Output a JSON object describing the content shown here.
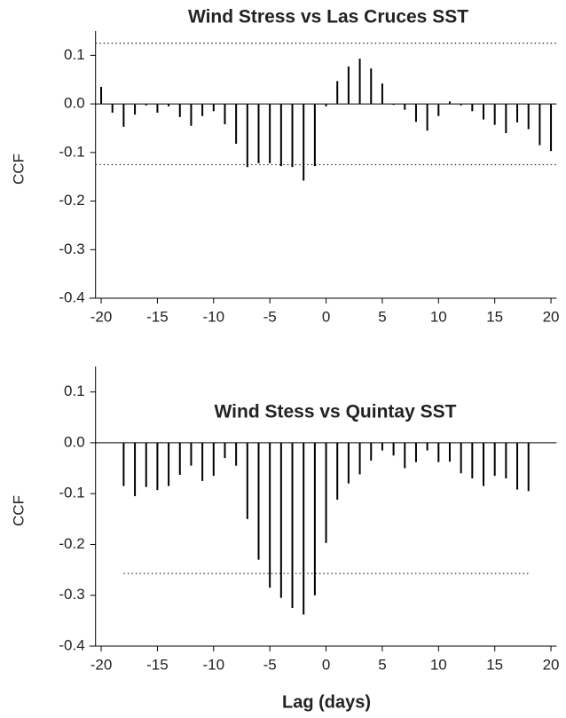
{
  "chart_data": [
    {
      "type": "bar",
      "title": "Wind Stress  vs  Las Cruces SST",
      "ylabel": "CCF",
      "x": [
        -20,
        -19,
        -18,
        -17,
        -16,
        -15,
        -14,
        -13,
        -12,
        -11,
        -10,
        -9,
        -8,
        -7,
        -6,
        -5,
        -4,
        -3,
        -2,
        -1,
        0,
        1,
        2,
        3,
        4,
        5,
        6,
        7,
        8,
        9,
        10,
        11,
        12,
        13,
        14,
        15,
        16,
        17,
        18,
        19,
        20
      ],
      "values": [
        0.035,
        -0.018,
        -0.047,
        -0.022,
        -0.003,
        -0.018,
        -0.005,
        -0.027,
        -0.045,
        -0.025,
        -0.015,
        -0.042,
        -0.082,
        -0.13,
        -0.122,
        -0.122,
        -0.128,
        -0.13,
        -0.158,
        -0.128,
        -0.005,
        0.047,
        0.077,
        0.093,
        0.073,
        0.042,
        -0.002,
        -0.012,
        -0.037,
        -0.055,
        -0.025,
        0.005,
        -0.003,
        -0.015,
        -0.032,
        -0.043,
        -0.06,
        -0.038,
        -0.052,
        -0.085,
        -0.097
      ],
      "color": "#000000",
      "reference_lines": [
        0.125,
        -0.125
      ],
      "xlim": [
        -20.5,
        20.5
      ],
      "xticks": [
        -20,
        -15,
        -10,
        -5,
        0,
        5,
        10,
        15,
        20
      ],
      "ylim": [
        -0.4,
        0.15
      ],
      "yticks": [
        -0.4,
        -0.3,
        -0.2,
        -0.1,
        {
          "value": 0,
          "label": "0.0"
        },
        0.1
      ]
    },
    {
      "type": "bar",
      "title": "Wind Stess  vs  Quintay SST",
      "ylabel": "CCF",
      "xlabel": "Lag (days)",
      "x": [
        -18,
        -17,
        -16,
        -15,
        -14,
        -13,
        -12,
        -11,
        -10,
        -9,
        -8,
        -7,
        -6,
        -5,
        -4,
        -3,
        -2,
        -1,
        0,
        1,
        2,
        3,
        4,
        5,
        6,
        7,
        8,
        9,
        10,
        11,
        12,
        13,
        14,
        15,
        16,
        17,
        18
      ],
      "values": [
        -0.085,
        -0.105,
        -0.087,
        -0.093,
        -0.085,
        -0.063,
        -0.045,
        -0.075,
        -0.065,
        -0.03,
        -0.045,
        -0.15,
        -0.23,
        -0.285,
        -0.305,
        -0.325,
        -0.338,
        -0.3,
        -0.197,
        -0.112,
        -0.08,
        -0.062,
        -0.035,
        -0.015,
        -0.025,
        -0.05,
        -0.038,
        -0.015,
        -0.038,
        -0.037,
        -0.06,
        -0.07,
        -0.085,
        -0.065,
        -0.07,
        -0.092,
        -0.095
      ],
      "color": "#000000",
      "reference_lines": [
        -0.257
      ],
      "xlim": [
        -20.5,
        20.5
      ],
      "xticks": [
        -20,
        -15,
        -10,
        -5,
        0,
        5,
        10,
        15,
        20
      ],
      "ylim": [
        -0.4,
        0.15
      ],
      "yticks": [
        -0.4,
        -0.3,
        -0.2,
        -0.1,
        {
          "value": 0,
          "label": "0.0"
        },
        0.1
      ]
    }
  ]
}
